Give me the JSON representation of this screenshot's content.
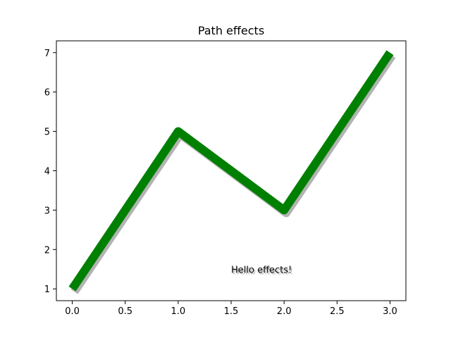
{
  "chart_data": {
    "type": "line",
    "title": "Path effects",
    "xlabel": "",
    "ylabel": "",
    "x": [
      0,
      1,
      2,
      3
    ],
    "series": [
      {
        "values": [
          1,
          5,
          3,
          7
        ]
      }
    ],
    "xlim": [
      -0.15,
      3.15
    ],
    "ylim": [
      0.7,
      7.3
    ],
    "xticks": [
      "0.0",
      "0.5",
      "1.0",
      "1.5",
      "2.0",
      "2.5",
      "3.0"
    ],
    "yticks": [
      "1",
      "2",
      "3",
      "4",
      "5",
      "6",
      "7"
    ],
    "grid": false,
    "line_color": "#008000",
    "shadow_color": "#b3b3b3",
    "annotations": [
      {
        "text": "Hello effects!",
        "x": 1.5,
        "y": 1.5
      }
    ]
  }
}
